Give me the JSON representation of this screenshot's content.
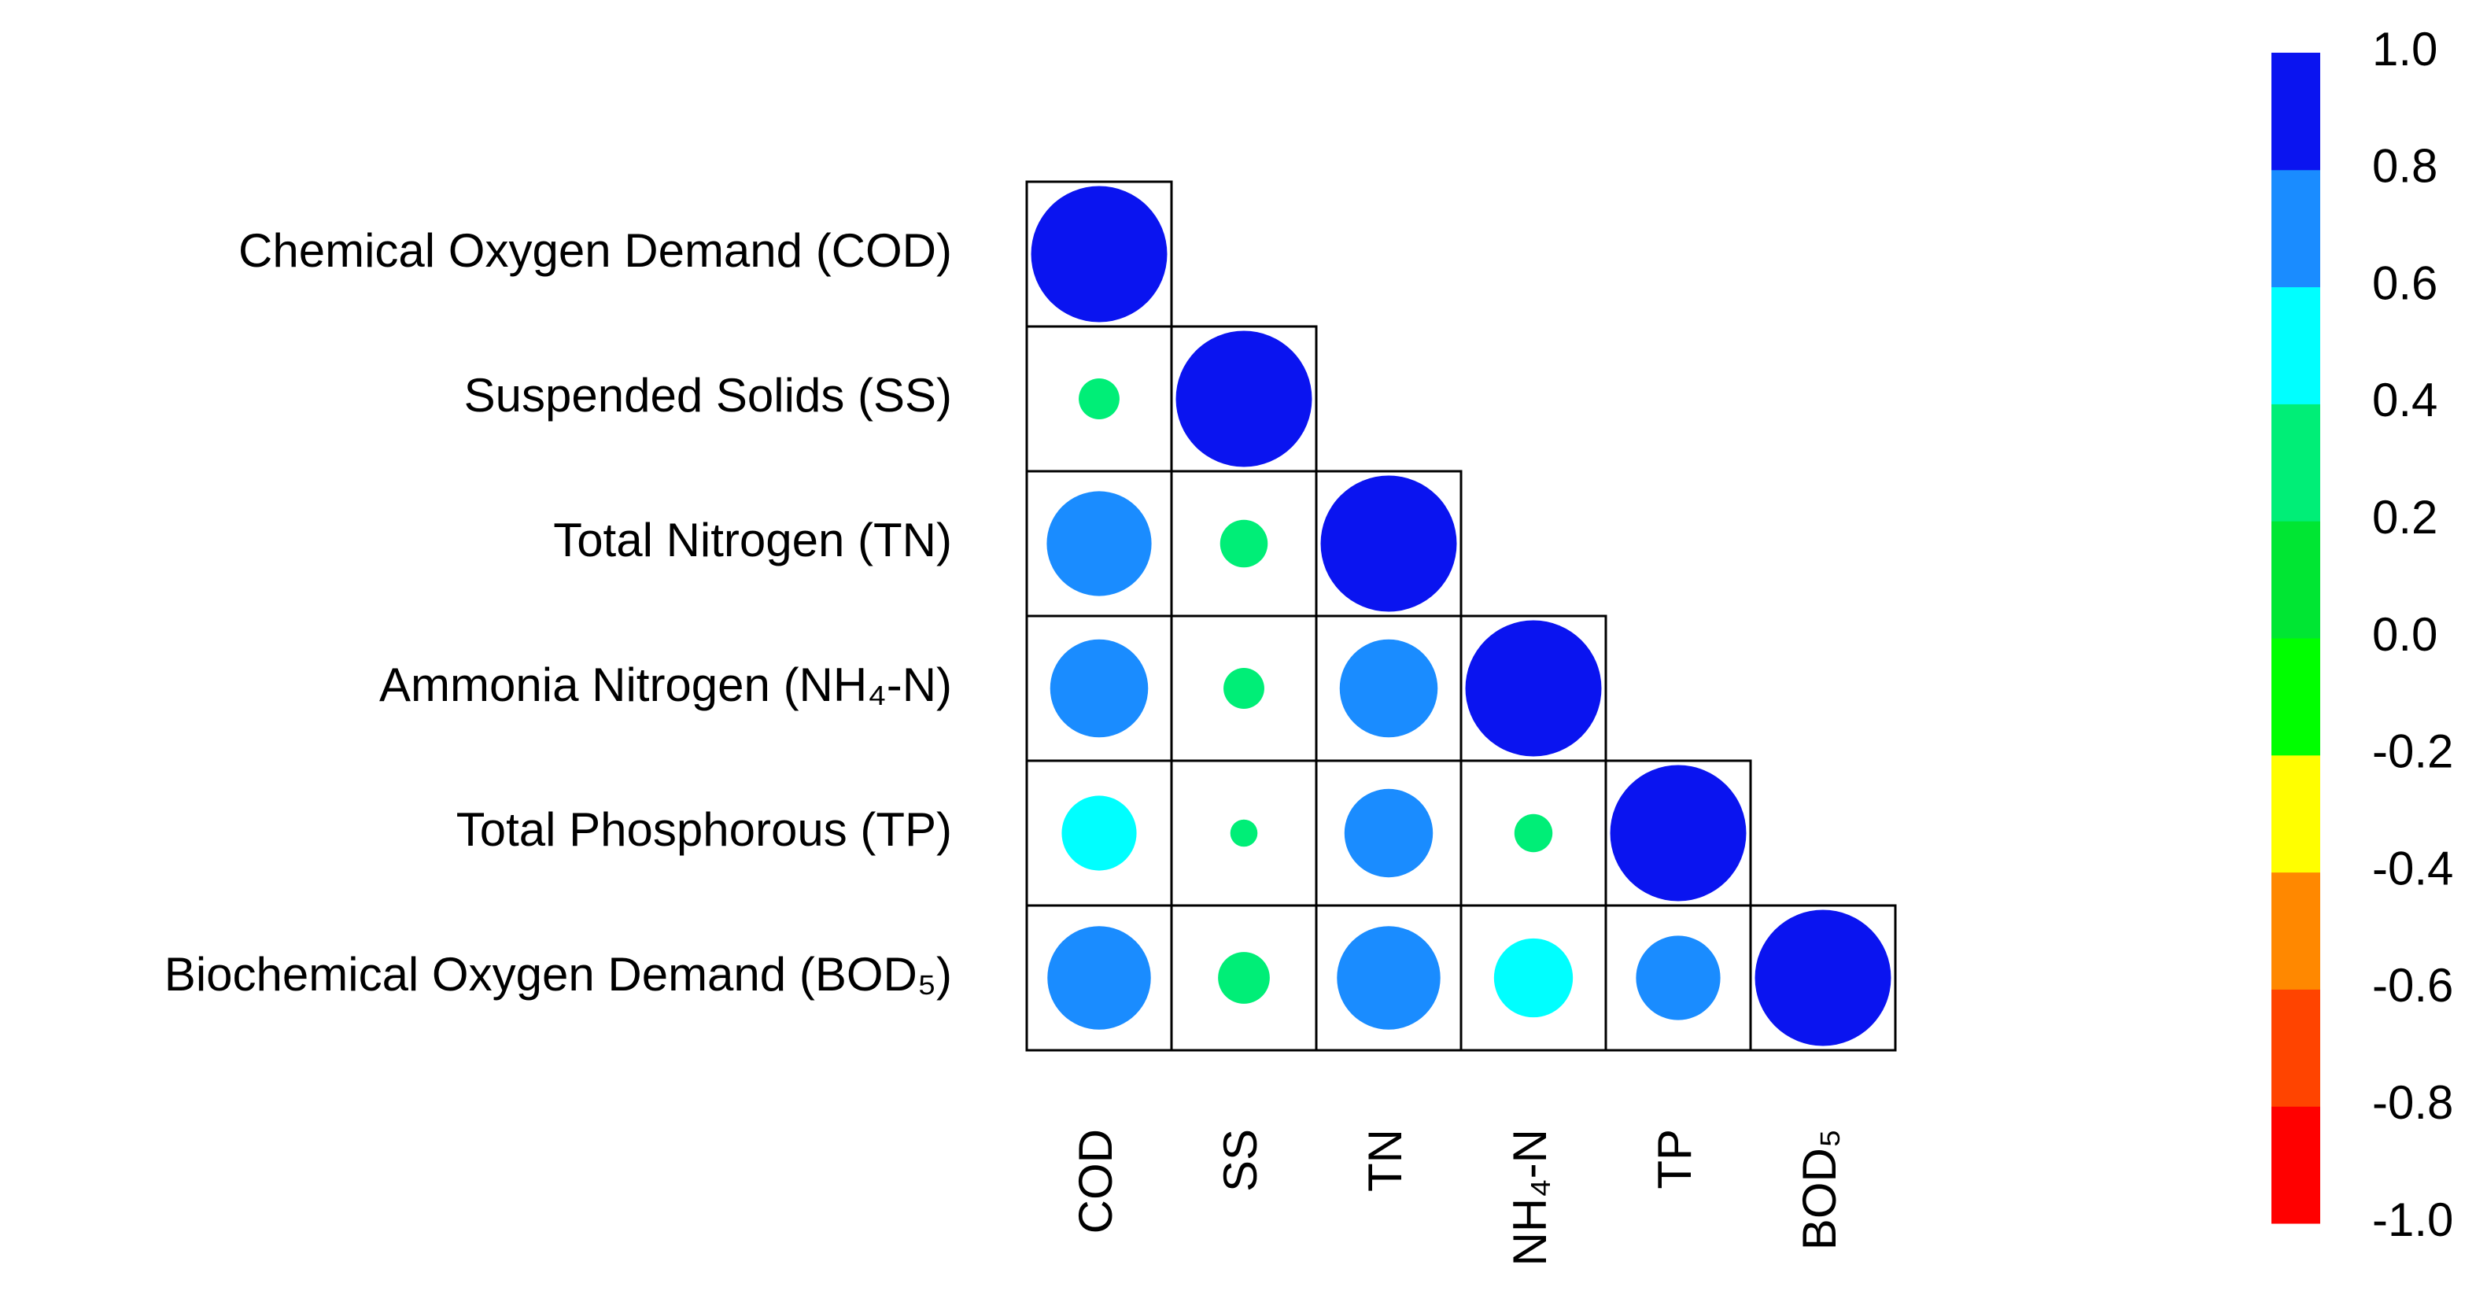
{
  "chart_data": {
    "type": "corrplot",
    "rows": [
      "Chemical Oxygen Demand (COD)",
      "Suspended Solids (SS)",
      "Total Nitrogen (TN)",
      "Ammonia Nitrogen (NH₄-N)",
      "Total Phosphorous (TP)",
      "Biochemical Oxygen Demand (BOD₅)"
    ],
    "columns": [
      "COD",
      "SS",
      "TN",
      "NH₄-N",
      "TP",
      "BOD₅"
    ],
    "values": [
      [
        1
      ],
      [
        0.3,
        1
      ],
      [
        0.77,
        0.35,
        1
      ],
      [
        0.72,
        0.3,
        0.72,
        1
      ],
      [
        0.55,
        0.2,
        0.65,
        0.28,
        1
      ],
      [
        0.76,
        0.38,
        0.76,
        0.58,
        0.62,
        1
      ]
    ],
    "colorbar": {
      "colors": [
        "#ff0000",
        "#ff4400",
        "#ff8800",
        "#ffff00",
        "#00ff00",
        "#00e633",
        "#00ee77",
        "#00ffff",
        "#1a8cff",
        "#0a14f0"
      ],
      "ylim": [
        -1,
        1
      ],
      "yticks": [
        {
          "value": -1,
          "label": "-1.0"
        },
        -0.8,
        -0.6,
        -0.4,
        -0.2,
        {
          "value": 0,
          "label": "0.0"
        },
        0.2,
        0.4,
        0.6,
        0.8,
        {
          "value": 1,
          "label": "1.0"
        }
      ]
    }
  }
}
